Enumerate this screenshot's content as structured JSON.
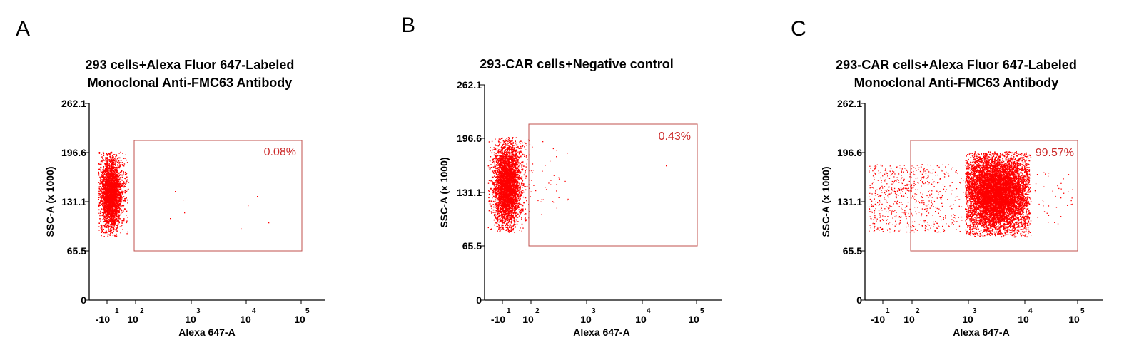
{
  "chart_data": [
    {
      "type": "scatter",
      "panel_label": "A",
      "title_lines": [
        "293 cells+Alexa Fluor 647-Labeled",
        "Monoclonal Anti-FMC63 Antibody"
      ],
      "xlabel": "Alexa 647-A",
      "ylabel": "SSC-A (x 1000)",
      "x_tick_labels": [
        {
          "base": "-10",
          "exp": "1"
        },
        {
          "base": "10",
          "exp": "2"
        },
        {
          "base": "10",
          "exp": "3"
        },
        {
          "base": "10",
          "exp": "4"
        },
        {
          "base": "10",
          "exp": "5"
        }
      ],
      "y_ticks": [
        "0",
        "65.5",
        "131.1",
        "196.6",
        "262.1"
      ],
      "ylim": [
        0,
        262.1
      ],
      "gate": {
        "label": "0.08%",
        "percent": 0.08
      },
      "point_color": "#ff0000"
    },
    {
      "type": "scatter",
      "panel_label": "B",
      "title_lines": [
        "293-CAR cells+Negative control"
      ],
      "xlabel": "Alexa 647-A",
      "ylabel": "SSC-A (x 1000)",
      "x_tick_labels": [
        {
          "base": "-10",
          "exp": "1"
        },
        {
          "base": "10",
          "exp": "2"
        },
        {
          "base": "10",
          "exp": "3"
        },
        {
          "base": "10",
          "exp": "4"
        },
        {
          "base": "10",
          "exp": "5"
        }
      ],
      "y_ticks": [
        "0",
        "65.5",
        "131.1",
        "196.6",
        "262.1"
      ],
      "ylim": [
        0,
        262.1
      ],
      "gate": {
        "label": "0.43%",
        "percent": 0.43
      },
      "point_color": "#ff0000"
    },
    {
      "type": "scatter",
      "panel_label": "C",
      "title_lines": [
        "293-CAR cells+Alexa Fluor 647-Labeled",
        "Monoclonal Anti-FMC63 Antibody"
      ],
      "xlabel": "Alexa 647-A",
      "ylabel": "SSC-A (x 1000)",
      "x_tick_labels": [
        {
          "base": "-10",
          "exp": "1"
        },
        {
          "base": "10",
          "exp": "2"
        },
        {
          "base": "10",
          "exp": "3"
        },
        {
          "base": "10",
          "exp": "4"
        },
        {
          "base": "10",
          "exp": "5"
        }
      ],
      "y_ticks": [
        "0",
        "65.5",
        "131.1",
        "196.6",
        "262.1"
      ],
      "ylim": [
        0,
        262.1
      ],
      "gate": {
        "label": "99.57%",
        "percent": 99.57
      },
      "point_color": "#ff0000"
    }
  ],
  "colors": {
    "axis": "#000000",
    "gate_border": "#c0504d",
    "gate_text": "#cc2a2a",
    "points": "#ff0000"
  }
}
